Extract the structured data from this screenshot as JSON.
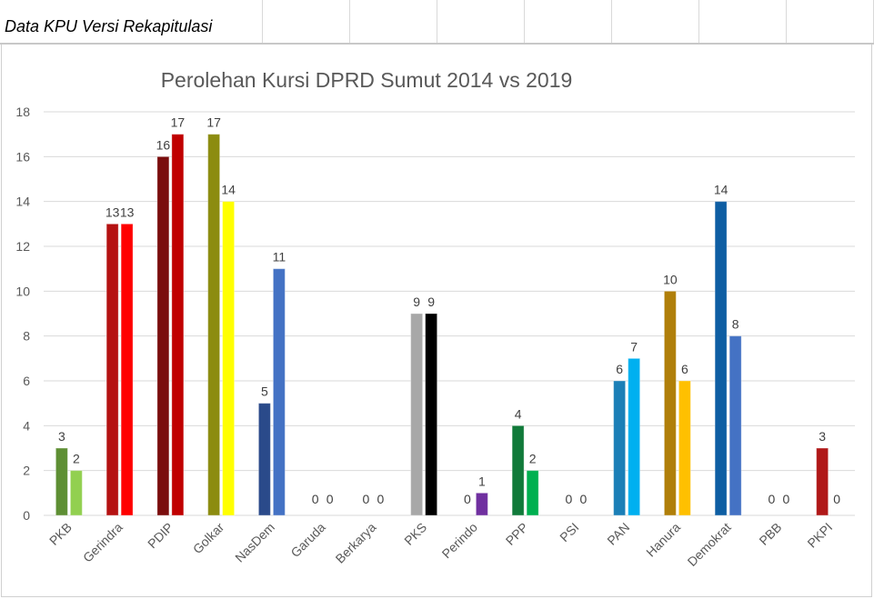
{
  "sheet": {
    "title": "Data KPU Versi Rekapitulasi"
  },
  "chart_data": {
    "type": "bar",
    "title": "Perolehan Kursi DPRD Sumut 2014 vs 2019",
    "ylim": [
      0,
      18
    ],
    "yticks": [
      "0",
      "2",
      "4",
      "6",
      "8",
      "10",
      "12",
      "14",
      "16",
      "18"
    ],
    "grid": true,
    "categories": [
      "PKB",
      "Gerindra",
      "PDIP",
      "Golkar",
      "NasDem",
      "Garuda",
      "Berkarya",
      "PKS",
      "Perindo",
      "PPP",
      "PSI",
      "PAN",
      "Hanura",
      "Demokrat",
      "PBB",
      "PKPI"
    ],
    "series": [
      {
        "name": "2014",
        "values": [
          3,
          13,
          16,
          17,
          5,
          0,
          0,
          9,
          0,
          4,
          0,
          6,
          10,
          14,
          0,
          3
        ]
      },
      {
        "name": "2019",
        "values": [
          2,
          13,
          17,
          14,
          11,
          0,
          0,
          9,
          1,
          2,
          0,
          7,
          6,
          8,
          0,
          0
        ]
      }
    ],
    "data_labels_2014": [
      "3",
      "13",
      "16",
      "17",
      "5",
      "0",
      "0",
      "9",
      "0",
      "4",
      "0",
      "6",
      "10",
      "14",
      "0",
      "3"
    ],
    "data_labels_2019": [
      "2",
      "13",
      "17",
      "14",
      "11",
      "0",
      "0",
      "9",
      "1",
      "2",
      "0",
      "7",
      "6",
      "8",
      "0",
      "0"
    ],
    "colors_2014": [
      "#5e8f34",
      "#b51212",
      "#7a0d0d",
      "#8c8c10",
      "#2a4a8a",
      "#999999",
      "#999999",
      "#a8a8a8",
      "#5c2a86",
      "#117a3a",
      "#0b8fc0",
      "#1b7fb7",
      "#b07f0a",
      "#0e5ea3",
      "#888888",
      "#b01818"
    ],
    "colors_2019": [
      "#92d050",
      "#ff0000",
      "#c00000",
      "#ffff00",
      "#4472c4",
      "#bbbbbb",
      "#bbbbbb",
      "#000000",
      "#7030a0",
      "#00b050",
      "#00b0f0",
      "#00b0f0",
      "#ffc000",
      "#4472c4",
      "#bbbbbb",
      "#ff0000"
    ]
  }
}
